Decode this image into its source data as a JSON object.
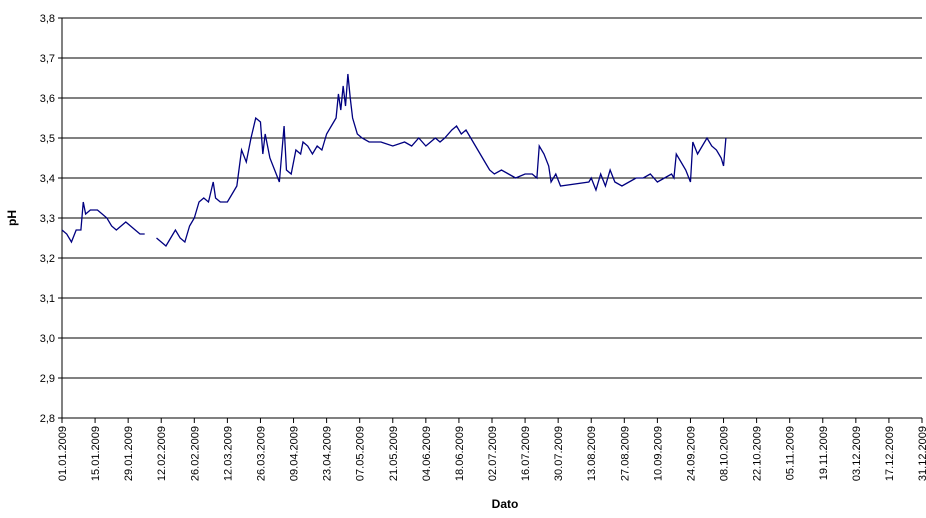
{
  "chart_data": {
    "type": "line",
    "xlabel": "Dato",
    "ylabel": "pH",
    "x": [
      "01.01.2009",
      "03.01.2009",
      "05.01.2009",
      "07.01.2009",
      "09.01.2009",
      "10.01.2009",
      "11.01.2009",
      "13.01.2009",
      "16.01.2009",
      "18.01.2009",
      "20.01.2009",
      "22.01.2009",
      "24.01.2009",
      "26.01.2009",
      "28.01.2009",
      "30.01.2009",
      "01.02.2009",
      "03.02.2009",
      "05.02.2009",
      "07.02.2009",
      "10.02.2009",
      "12.02.2009",
      "14.02.2009",
      "16.02.2009",
      "18.02.2009",
      "20.02.2009",
      "22.02.2009",
      "24.02.2009",
      "26.02.2009",
      "28.02.2009",
      "02.03.2009",
      "04.03.2009",
      "06.03.2009",
      "07.03.2009",
      "09.03.2009",
      "12.03.2009",
      "14.03.2009",
      "16.03.2009",
      "18.03.2009",
      "20.03.2009",
      "22.03.2009",
      "24.03.2009",
      "26.03.2009",
      "27.03.2009",
      "28.03.2009",
      "30.03.2009",
      "01.04.2009",
      "03.04.2009",
      "05.04.2009",
      "06.04.2009",
      "08.04.2009",
      "10.04.2009",
      "12.04.2009",
      "13.04.2009",
      "15.04.2009",
      "17.04.2009",
      "19.04.2009",
      "21.04.2009",
      "23.04.2009",
      "25.04.2009",
      "27.04.2009",
      "28.04.2009",
      "29.04.2009",
      "30.04.2009",
      "01.05.2009",
      "02.05.2009",
      "03.05.2009",
      "04.05.2009",
      "06.05.2009",
      "08.05.2009",
      "11.05.2009",
      "16.05.2009",
      "21.05.2009",
      "26.05.2009",
      "29.05.2009",
      "01.06.2009",
      "04.06.2009",
      "06.06.2009",
      "08.06.2009",
      "10.06.2009",
      "12.06.2009",
      "15.06.2009",
      "17.06.2009",
      "19.06.2009",
      "21.06.2009",
      "23.06.2009",
      "25.06.2009",
      "27.06.2009",
      "29.06.2009",
      "01.07.2009",
      "03.07.2009",
      "06.07.2009",
      "09.07.2009",
      "12.07.2009",
      "16.07.2009",
      "19.07.2009",
      "21.07.2009",
      "22.07.2009",
      "24.07.2009",
      "26.07.2009",
      "27.07.2009",
      "29.07.2009",
      "31.07.2009",
      "12.08.2009",
      "13.08.2009",
      "15.08.2009",
      "17.08.2009",
      "19.08.2009",
      "21.08.2009",
      "23.08.2009",
      "26.08.2009",
      "29.08.2009",
      "01.09.2009",
      "04.09.2009",
      "07.09.2009",
      "10.09.2009",
      "13.09.2009",
      "16.09.2009",
      "17.09.2009",
      "18.09.2009",
      "20.09.2009",
      "22.09.2009",
      "24.09.2009",
      "25.09.2009",
      "27.09.2009",
      "29.09.2009",
      "01.10.2009",
      "03.10.2009",
      "05.10.2009",
      "07.10.2009",
      "08.10.2009",
      "09.10.2009"
    ],
    "series": [
      {
        "color": "#000080",
        "values": [
          3.27,
          3.26,
          3.24,
          3.27,
          3.27,
          3.34,
          3.31,
          3.32,
          3.32,
          3.31,
          3.3,
          3.28,
          3.27,
          3.28,
          3.29,
          3.28,
          3.27,
          3.26,
          3.26,
          null,
          3.25,
          3.24,
          3.23,
          3.25,
          3.27,
          3.25,
          3.24,
          3.28,
          3.3,
          3.34,
          3.35,
          3.34,
          3.39,
          3.35,
          3.34,
          3.34,
          3.36,
          3.38,
          3.47,
          3.44,
          3.5,
          3.55,
          3.54,
          3.46,
          3.51,
          3.45,
          3.42,
          3.39,
          3.53,
          3.42,
          3.41,
          3.47,
          3.46,
          3.49,
          3.48,
          3.46,
          3.48,
          3.47,
          3.51,
          3.53,
          3.55,
          3.61,
          3.57,
          3.63,
          3.58,
          3.66,
          3.6,
          3.55,
          3.51,
          3.5,
          3.49,
          3.49,
          3.48,
          3.49,
          3.48,
          3.5,
          3.48,
          3.49,
          3.5,
          3.49,
          3.5,
          3.52,
          3.53,
          3.51,
          3.52,
          3.5,
          3.48,
          3.46,
          3.44,
          3.42,
          3.41,
          3.42,
          3.41,
          3.4,
          3.41,
          3.41,
          3.4,
          3.48,
          3.46,
          3.43,
          3.39,
          3.41,
          3.38,
          3.39,
          3.4,
          3.37,
          3.41,
          3.38,
          3.42,
          3.39,
          3.38,
          3.39,
          3.4,
          3.4,
          3.41,
          3.39,
          3.4,
          3.41,
          3.4,
          3.46,
          3.44,
          3.42,
          3.39,
          3.49,
          3.46,
          3.48,
          3.5,
          3.48,
          3.47,
          3.45,
          3.43,
          3.5
        ]
      }
    ],
    "xlim": [
      "01.01.2009",
      "31.12.2009"
    ],
    "xticks": [
      "01.01.2009",
      "15.01.2009",
      "29.01.2009",
      "12.02.2009",
      "26.02.2009",
      "12.03.2009",
      "26.03.2009",
      "09.04.2009",
      "23.04.2009",
      "07.05.2009",
      "21.05.2009",
      "04.06.2009",
      "18.06.2009",
      "02.07.2009",
      "16.07.2009",
      "30.07.2009",
      "13.08.2009",
      "27.08.2009",
      "10.09.2009",
      "24.09.2009",
      "08.10.2009",
      "22.10.2009",
      "05.11.2009",
      "19.11.2009",
      "03.12.2009",
      "17.12.2009",
      "31.12.2009"
    ],
    "ylim": [
      2.8,
      3.8
    ],
    "yticks": [
      {
        "value": 2.8,
        "label": "2,8"
      },
      {
        "value": 2.9,
        "label": "2,9"
      },
      {
        "value": 3.0,
        "label": "3,0"
      },
      {
        "value": 3.1,
        "label": "3,1"
      },
      {
        "value": 3.2,
        "label": "3,2"
      },
      {
        "value": 3.3,
        "label": "3,3"
      },
      {
        "value": 3.4,
        "label": "3,4"
      },
      {
        "value": 3.5,
        "label": "3,5"
      },
      {
        "value": 3.6,
        "label": "3,6"
      },
      {
        "value": 3.7,
        "label": "3,7"
      },
      {
        "value": 3.8,
        "label": "3,8"
      }
    ],
    "grid": true
  }
}
